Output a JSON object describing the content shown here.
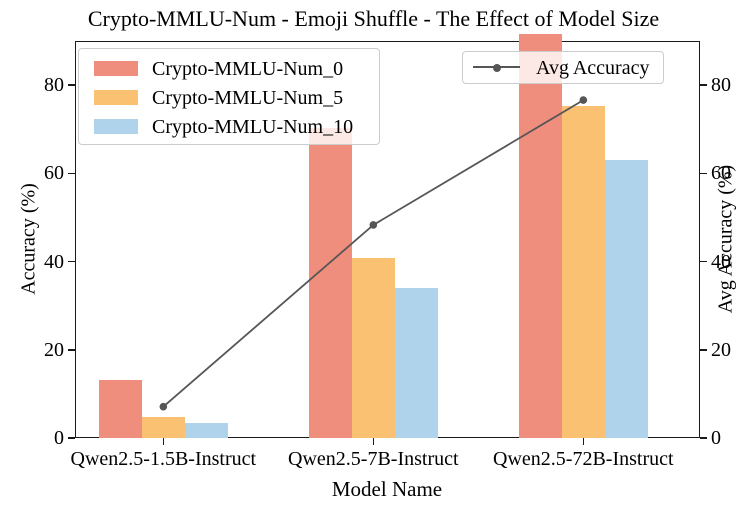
{
  "chart_data": {
    "type": "bar",
    "title": "Crypto-MMLU-Num - Emoji Shuffle - The Effect of Model Size",
    "xlabel": "Model Name",
    "ylabel": "Accuracy (%)",
    "y2label": "Avg Accuracy (%)",
    "categories": [
      "Qwen2.5-1.5B-Instruct",
      "Qwen2.5-7B-Instruct",
      "Qwen2.5-72B-Instruct"
    ],
    "series": [
      {
        "name": "Crypto-MMLU-Num_0",
        "color": "#F08E7D",
        "values": [
          13.2,
          70.2,
          91.5
        ]
      },
      {
        "name": "Crypto-MMLU-Num_5",
        "color": "#FAC173",
        "values": [
          4.8,
          40.7,
          75.2
        ]
      },
      {
        "name": "Crypto-MMLU-Num_10",
        "color": "#AFD3EB",
        "values": [
          3.4,
          33.9,
          63.0
        ]
      }
    ],
    "line_series": {
      "name": "Avg Accuracy",
      "color": "#565656",
      "values": [
        7.1,
        48.3,
        76.6
      ]
    },
    "ylim": [
      0,
      90
    ],
    "yticks": [
      0,
      20,
      40,
      60,
      80
    ],
    "grid": false,
    "legend_positions": {
      "bars": "upper left",
      "line": "upper right"
    }
  }
}
